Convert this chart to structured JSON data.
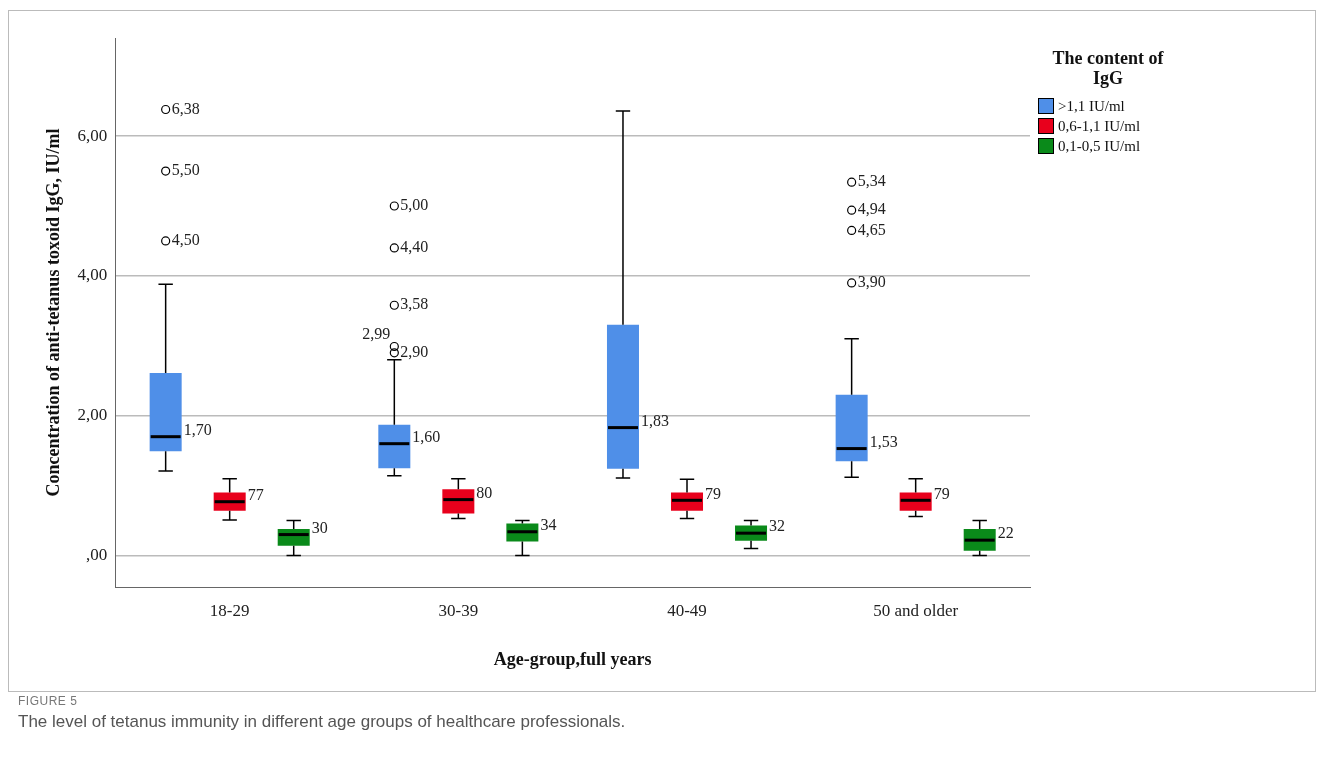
{
  "chart_data": {
    "type": "box",
    "xlabel": "Age-group,full years",
    "ylabel": "Concentration of anti-tetanus toxoid IgG, IU/ml",
    "legend_title": "The content of IgG",
    "legend": "right",
    "grid": "y",
    "marker": "circle",
    "categories": [
      "18-29",
      "30-39",
      "40-49",
      "50 and older"
    ],
    "ylim": [
      -0.45,
      7.4
    ],
    "yticks": [
      {
        "value": 0,
        "label": ",00"
      },
      {
        "value": 2,
        "label": "2,00"
      },
      {
        "value": 4,
        "label": "4,00"
      },
      {
        "value": 6,
        "label": "6,00"
      }
    ],
    "series": [
      {
        "name": ">1,1 IU/ml",
        "color": "#4f8fe8",
        "boxes": [
          {
            "low": 1.21,
            "q1": 1.49,
            "median": 1.7,
            "q3": 2.61,
            "high": 3.88,
            "outliers": [
              4.5,
              5.5,
              6.38
            ]
          },
          {
            "low": 1.14,
            "q1": 1.25,
            "median": 1.6,
            "q3": 1.87,
            "high": 2.8,
            "outliers": [
              2.9,
              2.99,
              3.58,
              4.4,
              5.0
            ]
          },
          {
            "low": 1.11,
            "q1": 1.24,
            "median": 1.83,
            "q3": 3.3,
            "high": 6.36
          },
          {
            "low": 1.12,
            "q1": 1.35,
            "median": 1.53,
            "q3": 2.3,
            "high": 3.1,
            "outliers": [
              3.9,
              4.65,
              4.94,
              5.34
            ]
          }
        ]
      },
      {
        "name": "0,6-1,1 IU/ml",
        "color": "#e8001c",
        "boxes": [
          {
            "low": 0.51,
            "q1": 0.64,
            "median": 0.77,
            "q3": 0.9,
            "high": 1.1
          },
          {
            "low": 0.53,
            "q1": 0.6,
            "median": 0.8,
            "q3": 0.95,
            "high": 1.1
          },
          {
            "low": 0.53,
            "q1": 0.64,
            "median": 0.79,
            "q3": 0.9,
            "high": 1.09
          },
          {
            "low": 0.56,
            "q1": 0.64,
            "median": 0.79,
            "q3": 0.9,
            "high": 1.1
          }
        ]
      },
      {
        "name": "0,1-0,5 IU/ml",
        "color": "#0a8a1a",
        "boxes": [
          {
            "low": 0,
            "q1": 0.14,
            "median": 0.3,
            "q3": 0.38,
            "high": 0.5
          },
          {
            "low": 0,
            "q1": 0.2,
            "median": 0.34,
            "q3": 0.46,
            "high": 0.5
          },
          {
            "low": 0.1,
            "q1": 0.21,
            "median": 0.32,
            "q3": 0.43,
            "high": 0.5
          },
          {
            "low": 0,
            "q1": 0.07,
            "median": 0.22,
            "q3": 0.38,
            "high": 0.5
          }
        ]
      }
    ],
    "annotations": [
      "6,38",
      "5,50",
      "4,50",
      "1,70",
      "77",
      "30",
      "5,00",
      "4,40",
      "3,58",
      "2,99",
      "2,90",
      "1,60",
      "80",
      "34",
      "1,83",
      "79",
      "32",
      "5,34",
      "4,94",
      "4,65",
      "3,90",
      "1,53",
      "79",
      "22",
      "FIGURE 5",
      "The level of tetanus immunity in different age groups of healthcare professionals."
    ]
  }
}
